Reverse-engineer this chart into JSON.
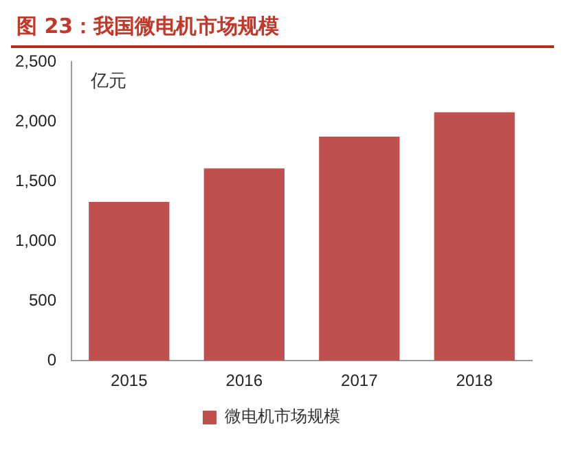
{
  "chart_data": {
    "type": "bar",
    "title": "图 23：我国微电机市场规模",
    "ylabel": "亿元",
    "categories": [
      "2015",
      "2016",
      "2017",
      "2018"
    ],
    "series": [
      {
        "name": "微电机市场规模",
        "color": "#c0504d",
        "values": [
          1330,
          1610,
          1875,
          2080
        ]
      }
    ],
    "ylim": [
      0,
      2500
    ],
    "yticks": [
      {
        "value": 0,
        "label": "0"
      },
      {
        "value": 500,
        "label": "500"
      },
      {
        "value": 1000,
        "label": "1,000"
      },
      {
        "value": 1500,
        "label": "1,500"
      },
      {
        "value": 2000,
        "label": "2,000"
      },
      {
        "value": 2500,
        "label": "2,500"
      }
    ],
    "grid": false,
    "legend": "bottom"
  }
}
